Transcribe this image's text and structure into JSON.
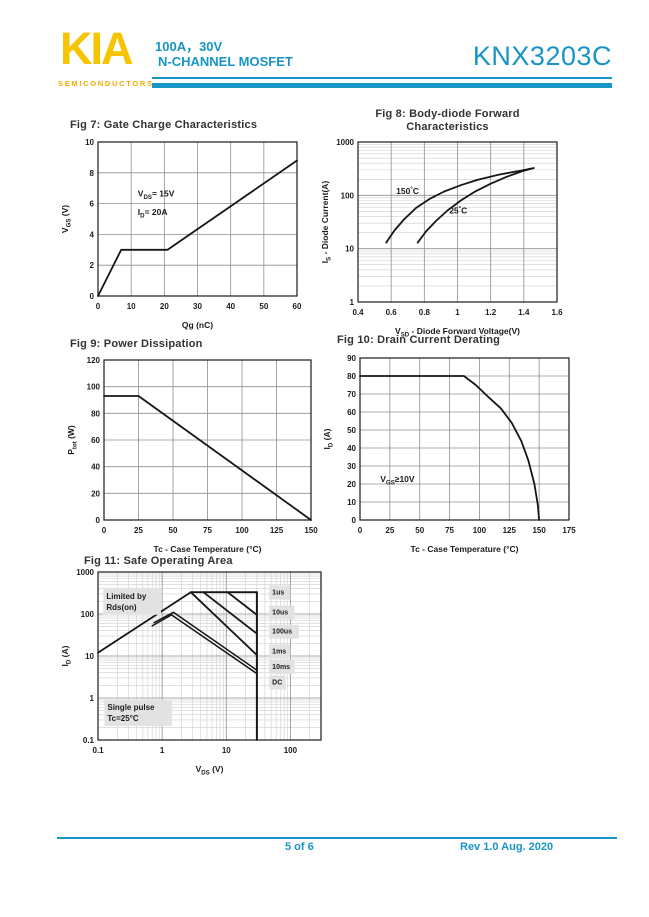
{
  "palette": {
    "accent": "#1795c5",
    "logo_yellow": "#f6c400",
    "logo_sub_yellow": "#f0ad00",
    "chart_line": "#161616",
    "grid_major": "#8f8f8f",
    "grid_minor": "#cfcfcf",
    "annotation_box": "#e2e2e2",
    "title_gray": "#333333"
  },
  "header": {
    "logo_text": "KIA",
    "logo_sub": "SEMICONDUCTORS",
    "rating_line": "100A，30V",
    "type_line": "N-CHANNEL MOSFET",
    "part_number": "KNX3203C"
  },
  "footer": {
    "page_indicator": "5 of 6",
    "revision": "Rev 1.0 Aug. 2020"
  },
  "chart_data": [
    {
      "id": "fig7",
      "type": "line",
      "title": "Fig 7: Gate Charge Characteristics",
      "x": {
        "scale": "linear",
        "min": 0,
        "max": 60,
        "label_parts": [
          {
            "t": "Qg (nC)"
          }
        ],
        "ticks": [
          {
            "v": 0,
            "l": "0"
          },
          {
            "v": 10,
            "l": "10"
          },
          {
            "v": 20,
            "l": "20"
          },
          {
            "v": 30,
            "l": "30"
          },
          {
            "v": 40,
            "l": "40"
          },
          {
            "v": 50,
            "l": "50"
          },
          {
            "v": 60,
            "l": "60"
          }
        ]
      },
      "y": {
        "scale": "linear",
        "min": 0,
        "max": 10,
        "label_parts": [
          {
            "t": "V"
          },
          {
            "t": "GS",
            "s": "sub"
          },
          {
            "t": " (V)"
          }
        ],
        "ticks": [
          {
            "v": 0,
            "l": "0"
          },
          {
            "v": 2,
            "l": "2"
          },
          {
            "v": 4,
            "l": "4"
          },
          {
            "v": 6,
            "l": "6"
          },
          {
            "v": 8,
            "l": "8"
          },
          {
            "v": 10,
            "l": "10"
          }
        ]
      },
      "series": [
        {
          "name": "gate-charge",
          "points": [
            [
              0,
              0
            ],
            [
              7,
              3
            ],
            [
              21,
              3
            ],
            [
              60,
              8.8
            ]
          ]
        }
      ],
      "annotations": [
        {
          "x": 12,
          "y": 6.45,
          "parts": [
            {
              "t": "V"
            },
            {
              "t": "DS",
              "s": "sub"
            },
            {
              "t": "= 15V"
            }
          ]
        },
        {
          "x": 12,
          "y": 5.25,
          "parts": [
            {
              "t": "I"
            },
            {
              "t": "D",
              "s": "sub"
            },
            {
              "t": "= 20A"
            }
          ]
        }
      ]
    },
    {
      "id": "fig8",
      "type": "line",
      "title": "Fig 8: Body-diode Forward\nCharacteristics",
      "x": {
        "scale": "linear",
        "min": 0.4,
        "max": 1.6,
        "label_parts": [
          {
            "t": "V"
          },
          {
            "t": "SD",
            "s": "sub"
          },
          {
            "t": " - Diode Forward Voltage(V)"
          }
        ],
        "ticks": [
          {
            "v": 0.4,
            "l": "0.4"
          },
          {
            "v": 0.6,
            "l": "0.6"
          },
          {
            "v": 0.8,
            "l": "0.8"
          },
          {
            "v": 1,
            "l": "1"
          },
          {
            "v": 1.2,
            "l": "1.2"
          },
          {
            "v": 1.4,
            "l": "1.4"
          },
          {
            "v": 1.6,
            "l": "1.6"
          }
        ]
      },
      "y": {
        "scale": "log",
        "min": 1,
        "max": 1000,
        "label_parts": [
          {
            "t": "I"
          },
          {
            "t": "S",
            "s": "sub"
          },
          {
            "t": " - Diode Current(A)"
          }
        ],
        "ticks": [
          {
            "v": 1,
            "l": "1"
          },
          {
            "v": 10,
            "l": "10"
          },
          {
            "v": 100,
            "l": "100"
          },
          {
            "v": 1000,
            "l": "1000"
          }
        ]
      },
      "series": [
        {
          "name": "150C-curve",
          "points": [
            [
              0.57,
              13
            ],
            [
              0.62,
              22
            ],
            [
              0.68,
              36
            ],
            [
              0.75,
              58
            ],
            [
              0.83,
              85
            ],
            [
              0.92,
              118
            ],
            [
              1.02,
              155
            ],
            [
              1.12,
              195
            ],
            [
              1.25,
              245
            ],
            [
              1.38,
              290
            ],
            [
              1.45,
              320
            ]
          ]
        },
        {
          "name": "25C-curve",
          "points": [
            [
              0.76,
              13
            ],
            [
              0.81,
              21
            ],
            [
              0.87,
              33
            ],
            [
              0.94,
              52
            ],
            [
              1.02,
              80
            ],
            [
              1.1,
              115
            ],
            [
              1.2,
              165
            ],
            [
              1.3,
              225
            ],
            [
              1.4,
              290
            ],
            [
              1.46,
              325
            ]
          ]
        }
      ],
      "annotations": [
        {
          "x": 0.63,
          "y": 105,
          "parts": [
            {
              "t": "150"
            },
            {
              "t": "°",
              "s": "sup"
            },
            {
              "t": "C"
            }
          ]
        },
        {
          "x": 0.95,
          "y": 46,
          "parts": [
            {
              "t": "25"
            },
            {
              "t": "°",
              "s": "sup"
            },
            {
              "t": "C"
            }
          ]
        }
      ]
    },
    {
      "id": "fig9",
      "type": "line",
      "title": "Fig 9: Power Dissipation",
      "x": {
        "scale": "linear",
        "min": 0,
        "max": 150,
        "label_parts": [
          {
            "t": "Tc - Case Temperature (°C)"
          }
        ],
        "ticks": [
          {
            "v": 0,
            "l": "0"
          },
          {
            "v": 25,
            "l": "25"
          },
          {
            "v": 50,
            "l": "50"
          },
          {
            "v": 75,
            "l": "75"
          },
          {
            "v": 100,
            "l": "100"
          },
          {
            "v": 125,
            "l": "125"
          },
          {
            "v": 150,
            "l": "150"
          }
        ]
      },
      "y": {
        "scale": "linear",
        "min": 0,
        "max": 120,
        "label_parts": [
          {
            "t": "P"
          },
          {
            "t": "tot",
            "s": "sub"
          },
          {
            "t": " (W)"
          }
        ],
        "ticks": [
          {
            "v": 0,
            "l": "0"
          },
          {
            "v": 20,
            "l": "20"
          },
          {
            "v": 40,
            "l": "40"
          },
          {
            "v": 60,
            "l": "60"
          },
          {
            "v": 80,
            "l": "80"
          },
          {
            "v": 100,
            "l": "100"
          },
          {
            "v": 120,
            "l": "120"
          }
        ]
      },
      "series": [
        {
          "name": "power-derating",
          "points": [
            [
              0,
              93
            ],
            [
              25,
              93
            ],
            [
              150,
              0
            ]
          ]
        }
      ],
      "annotations": []
    },
    {
      "id": "fig10",
      "type": "line",
      "title": "Fig 10: Drain Current Derating",
      "x": {
        "scale": "linear",
        "min": 0,
        "max": 175,
        "label_parts": [
          {
            "t": "Tc - Case Temperature (°C)"
          }
        ],
        "ticks": [
          {
            "v": 0,
            "l": "0"
          },
          {
            "v": 25,
            "l": "25"
          },
          {
            "v": 50,
            "l": "50"
          },
          {
            "v": 75,
            "l": "75"
          },
          {
            "v": 100,
            "l": "100"
          },
          {
            "v": 125,
            "l": "125"
          },
          {
            "v": 150,
            "l": "150"
          },
          {
            "v": 175,
            "l": "175"
          }
        ]
      },
      "y": {
        "scale": "linear",
        "min": 0,
        "max": 90,
        "label_parts": [
          {
            "t": "I"
          },
          {
            "t": "D",
            "s": "sub"
          },
          {
            "t": " (A)"
          }
        ],
        "ticks": [
          {
            "v": 0,
            "l": "0"
          },
          {
            "v": 10,
            "l": "10"
          },
          {
            "v": 20,
            "l": "20"
          },
          {
            "v": 30,
            "l": "30"
          },
          {
            "v": 40,
            "l": "40"
          },
          {
            "v": 50,
            "l": "50"
          },
          {
            "v": 60,
            "l": "60"
          },
          {
            "v": 70,
            "l": "70"
          },
          {
            "v": 80,
            "l": "80"
          },
          {
            "v": 90,
            "l": "90"
          }
        ]
      },
      "series": [
        {
          "name": "current-derating",
          "points": [
            [
              0,
              80
            ],
            [
              87,
              80
            ],
            [
              97,
              75
            ],
            [
              108,
              68
            ],
            [
              118,
              62
            ],
            [
              127,
              54
            ],
            [
              135,
              44
            ],
            [
              141,
              33
            ],
            [
              146,
              20
            ],
            [
              149,
              8
            ],
            [
              150,
              0
            ]
          ]
        }
      ],
      "annotations": [
        {
          "x": 17,
          "y": 21,
          "parts": [
            {
              "t": "V"
            },
            {
              "t": "GS",
              "s": "sub"
            },
            {
              "t": "≥10V"
            }
          ]
        }
      ]
    },
    {
      "id": "fig11",
      "type": "line",
      "title": "Fig 11: Safe Operating Area",
      "x": {
        "scale": "log",
        "min": 0.1,
        "max": 300,
        "label_parts": [
          {
            "t": "V"
          },
          {
            "t": "DS",
            "s": "sub"
          },
          {
            "t": " (V)"
          }
        ],
        "ticks": [
          {
            "v": 0.1,
            "l": "0.1"
          },
          {
            "v": 1,
            "l": "1"
          },
          {
            "v": 10,
            "l": "10"
          },
          {
            "v": 100,
            "l": "100"
          }
        ]
      },
      "y": {
        "scale": "log",
        "min": 0.1,
        "max": 1000,
        "label_parts": [
          {
            "t": "I"
          },
          {
            "t": "D",
            "s": "sub"
          },
          {
            "t": " (A)"
          }
        ],
        "ticks": [
          {
            "v": 0.1,
            "l": "0.1"
          },
          {
            "v": 1,
            "l": "1"
          },
          {
            "v": 10,
            "l": "10"
          },
          {
            "v": 100,
            "l": "100"
          },
          {
            "v": 1000,
            "l": "1000"
          }
        ]
      },
      "series": [
        {
          "name": "rdson-limit",
          "points": [
            [
              0.1,
              12
            ],
            [
              2.8,
              330
            ]
          ]
        },
        {
          "name": "1us-limit",
          "points": [
            [
              2.8,
              330
            ],
            [
              30,
              330
            ]
          ]
        },
        {
          "name": "10us-limit",
          "points": [
            [
              10.5,
              330
            ],
            [
              30,
              95
            ]
          ]
        },
        {
          "name": "100us-limit",
          "points": [
            [
              4.4,
              330
            ],
            [
              30,
              34
            ]
          ]
        },
        {
          "name": "1ms-limit",
          "points": [
            [
              2.8,
              330
            ],
            [
              30,
              10.5
            ]
          ]
        },
        {
          "name": "10ms-limit",
          "w": 1.5,
          "points": [
            [
              0.75,
              62
            ],
            [
              1.5,
              110
            ],
            [
              30,
              4.6
            ]
          ]
        },
        {
          "name": "dc-limit",
          "w": 1.5,
          "points": [
            [
              0.7,
              52
            ],
            [
              1.4,
              95
            ],
            [
              30,
              3.8
            ]
          ]
        },
        {
          "name": "vds-max-30v",
          "w": 2,
          "points": [
            [
              30,
              330
            ],
            [
              30,
              0.1
            ]
          ]
        }
      ],
      "annotations": [
        {
          "x": 0.135,
          "y": 230,
          "lines": [
            "Limited by",
            "Rds(on)"
          ],
          "box": true,
          "size": 8
        },
        {
          "x": 0.14,
          "y": 0.52,
          "lines": [
            "Single pulse",
            "Tc=25°C"
          ],
          "box": true,
          "size": 8
        },
        {
          "x": 52,
          "y": 290,
          "parts": [
            {
              "t": "1us"
            }
          ],
          "box": true,
          "size": 7
        },
        {
          "x": 52,
          "y": 98,
          "parts": [
            {
              "t": "10us"
            }
          ],
          "box": true,
          "size": 7
        },
        {
          "x": 52,
          "y": 34,
          "parts": [
            {
              "t": "100us"
            }
          ],
          "box": true,
          "size": 7
        },
        {
          "x": 52,
          "y": 11.5,
          "parts": [
            {
              "t": "1ms"
            }
          ],
          "box": true,
          "size": 7
        },
        {
          "x": 52,
          "y": 4.9,
          "parts": [
            {
              "t": "10ms"
            }
          ],
          "box": true,
          "size": 7
        },
        {
          "x": 52,
          "y": 2.1,
          "parts": [
            {
              "t": "DC"
            }
          ],
          "box": true,
          "size": 7
        }
      ]
    }
  ]
}
